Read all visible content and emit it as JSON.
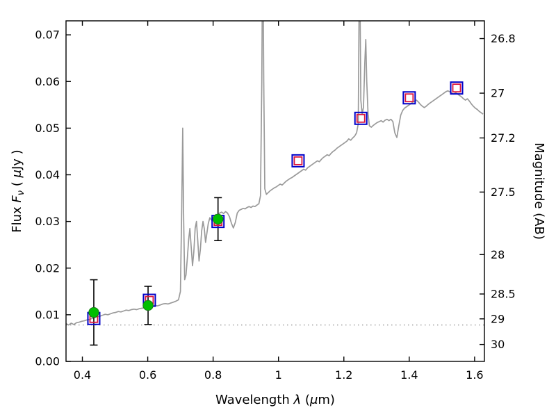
{
  "chart_data": {
    "type": "line",
    "title": "",
    "xlabel_parts": [
      {
        "t": "Wavelength  ",
        "style": "normal"
      },
      {
        "t": "λ",
        "style": "italic"
      },
      {
        "t": " (",
        "style": "normal"
      },
      {
        "t": "μ",
        "style": "italic"
      },
      {
        "t": "m)",
        "style": "normal"
      }
    ],
    "ylabel_left_parts": [
      {
        "t": "Flux  ",
        "style": "normal"
      },
      {
        "t": "F",
        "style": "italic"
      },
      {
        "t": "ν",
        "style": "italic-sub"
      },
      {
        "t": "  ( ",
        "style": "normal"
      },
      {
        "t": "μ",
        "style": "italic"
      },
      {
        "t": "Jy )",
        "style": "normal"
      }
    ],
    "right_axis": {
      "label": "Magnitude (AB)",
      "ticks": [
        {
          "label": "26.8",
          "flux": 0.0692
        },
        {
          "label": "27",
          "flux": 0.0575
        },
        {
          "label": "27.2",
          "flux": 0.0479
        },
        {
          "label": "27.5",
          "flux": 0.0363
        },
        {
          "label": "28",
          "flux": 0.0229
        },
        {
          "label": "28.5",
          "flux": 0.01445
        },
        {
          "label": "29",
          "flux": 0.00912
        },
        {
          "label": "30",
          "flux": 0.00363
        }
      ]
    },
    "xlim": [
      0.35,
      1.63
    ],
    "ylim": [
      0.0,
      0.073
    ],
    "x_ticks": [
      0.4,
      0.6,
      0.8,
      1.0,
      1.2,
      1.4,
      1.6
    ],
    "x_tick_labels": [
      "0.4",
      "0.6",
      "0.8",
      "1",
      "1.2",
      "1.4",
      "1.6"
    ],
    "y_ticks": [
      0.0,
      0.01,
      0.02,
      0.03,
      0.04,
      0.05,
      0.06,
      0.07
    ],
    "y_tick_labels": [
      "0.00",
      "0.01",
      "0.02",
      "0.03",
      "0.04",
      "0.05",
      "0.06",
      "0.07"
    ],
    "dotted_line": {
      "y": 0.0078
    },
    "observed": [
      {
        "x": 0.435,
        "y": 0.0105,
        "err": 0.007
      },
      {
        "x": 0.601,
        "y": 0.012,
        "err": 0.0041
      },
      {
        "x": 0.815,
        "y": 0.0305,
        "err": 0.0046
      }
    ],
    "model": [
      {
        "x": 0.435,
        "y": 0.0092
      },
      {
        "x": 0.605,
        "y": 0.0131
      },
      {
        "x": 0.815,
        "y": 0.03
      },
      {
        "x": 1.06,
        "y": 0.043
      },
      {
        "x": 1.252,
        "y": 0.0521
      },
      {
        "x": 1.4,
        "y": 0.0565
      },
      {
        "x": 1.545,
        "y": 0.0586
      }
    ],
    "spectrum": [
      [
        0.35,
        0.0081
      ],
      [
        0.358,
        0.0078
      ],
      [
        0.366,
        0.0082
      ],
      [
        0.374,
        0.0079
      ],
      [
        0.382,
        0.0083
      ],
      [
        0.39,
        0.0084
      ],
      [
        0.398,
        0.0086
      ],
      [
        0.406,
        0.0087
      ],
      [
        0.414,
        0.0089
      ],
      [
        0.422,
        0.009
      ],
      [
        0.43,
        0.0092
      ],
      [
        0.438,
        0.0094
      ],
      [
        0.446,
        0.0096
      ],
      [
        0.454,
        0.0097
      ],
      [
        0.462,
        0.0099
      ],
      [
        0.47,
        0.0101
      ],
      [
        0.478,
        0.01
      ],
      [
        0.486,
        0.0102
      ],
      [
        0.494,
        0.0104
      ],
      [
        0.502,
        0.0105
      ],
      [
        0.51,
        0.0107
      ],
      [
        0.518,
        0.0106
      ],
      [
        0.526,
        0.0108
      ],
      [
        0.534,
        0.011
      ],
      [
        0.542,
        0.0109
      ],
      [
        0.55,
        0.0111
      ],
      [
        0.558,
        0.0112
      ],
      [
        0.566,
        0.0111
      ],
      [
        0.574,
        0.0113
      ],
      [
        0.582,
        0.0114
      ],
      [
        0.59,
        0.0115
      ],
      [
        0.598,
        0.0116
      ],
      [
        0.606,
        0.0118
      ],
      [
        0.614,
        0.0119
      ],
      [
        0.622,
        0.012
      ],
      [
        0.63,
        0.0119
      ],
      [
        0.638,
        0.0121
      ],
      [
        0.646,
        0.0123
      ],
      [
        0.654,
        0.0124
      ],
      [
        0.662,
        0.0123
      ],
      [
        0.67,
        0.0125
      ],
      [
        0.678,
        0.0127
      ],
      [
        0.686,
        0.0129
      ],
      [
        0.694,
        0.0132
      ],
      [
        0.7,
        0.015
      ],
      [
        0.704,
        0.033
      ],
      [
        0.707,
        0.05
      ],
      [
        0.71,
        0.03
      ],
      [
        0.713,
        0.0175
      ],
      [
        0.717,
        0.0185
      ],
      [
        0.721,
        0.022
      ],
      [
        0.725,
        0.026
      ],
      [
        0.729,
        0.0285
      ],
      [
        0.733,
        0.0245
      ],
      [
        0.737,
        0.0205
      ],
      [
        0.741,
        0.0235
      ],
      [
        0.745,
        0.0285
      ],
      [
        0.749,
        0.03
      ],
      [
        0.753,
        0.026
      ],
      [
        0.757,
        0.0215
      ],
      [
        0.761,
        0.024
      ],
      [
        0.765,
        0.028
      ],
      [
        0.769,
        0.03
      ],
      [
        0.773,
        0.0285
      ],
      [
        0.777,
        0.0255
      ],
      [
        0.781,
        0.0275
      ],
      [
        0.785,
        0.0295
      ],
      [
        0.79,
        0.0308
      ],
      [
        0.796,
        0.0302
      ],
      [
        0.802,
        0.031
      ],
      [
        0.808,
        0.0315
      ],
      [
        0.814,
        0.0312
      ],
      [
        0.82,
        0.0318
      ],
      [
        0.826,
        0.032
      ],
      [
        0.832,
        0.0317
      ],
      [
        0.838,
        0.0321
      ],
      [
        0.844,
        0.0318
      ],
      [
        0.85,
        0.031
      ],
      [
        0.856,
        0.0296
      ],
      [
        0.862,
        0.0286
      ],
      [
        0.868,
        0.0298
      ],
      [
        0.874,
        0.0318
      ],
      [
        0.88,
        0.0324
      ],
      [
        0.886,
        0.0326
      ],
      [
        0.892,
        0.0328
      ],
      [
        0.898,
        0.0327
      ],
      [
        0.904,
        0.033
      ],
      [
        0.91,
        0.0332
      ],
      [
        0.916,
        0.033
      ],
      [
        0.922,
        0.0333
      ],
      [
        0.928,
        0.0332
      ],
      [
        0.934,
        0.0335
      ],
      [
        0.94,
        0.0338
      ],
      [
        0.945,
        0.0355
      ],
      [
        0.949,
        0.06
      ],
      [
        0.952,
        0.095
      ],
      [
        0.955,
        0.06
      ],
      [
        0.958,
        0.037
      ],
      [
        0.963,
        0.0358
      ],
      [
        0.969,
        0.0362
      ],
      [
        0.975,
        0.0366
      ],
      [
        0.981,
        0.0369
      ],
      [
        0.987,
        0.0372
      ],
      [
        0.993,
        0.0374
      ],
      [
        0.999,
        0.0377
      ],
      [
        1.005,
        0.038
      ],
      [
        1.011,
        0.0378
      ],
      [
        1.017,
        0.0382
      ],
      [
        1.023,
        0.0386
      ],
      [
        1.029,
        0.0389
      ],
      [
        1.035,
        0.0392
      ],
      [
        1.041,
        0.0394
      ],
      [
        1.047,
        0.0397
      ],
      [
        1.053,
        0.04
      ],
      [
        1.059,
        0.0403
      ],
      [
        1.065,
        0.0406
      ],
      [
        1.071,
        0.0409
      ],
      [
        1.077,
        0.0412
      ],
      [
        1.083,
        0.041
      ],
      [
        1.089,
        0.0415
      ],
      [
        1.095,
        0.0418
      ],
      [
        1.101,
        0.0421
      ],
      [
        1.107,
        0.0424
      ],
      [
        1.113,
        0.0427
      ],
      [
        1.119,
        0.043
      ],
      [
        1.125,
        0.0428
      ],
      [
        1.131,
        0.0433
      ],
      [
        1.137,
        0.0437
      ],
      [
        1.143,
        0.044
      ],
      [
        1.149,
        0.0443
      ],
      [
        1.155,
        0.0441
      ],
      [
        1.161,
        0.0446
      ],
      [
        1.167,
        0.045
      ],
      [
        1.173,
        0.0453
      ],
      [
        1.179,
        0.0457
      ],
      [
        1.185,
        0.046
      ],
      [
        1.191,
        0.0463
      ],
      [
        1.197,
        0.0466
      ],
      [
        1.203,
        0.0469
      ],
      [
        1.209,
        0.0472
      ],
      [
        1.215,
        0.0477
      ],
      [
        1.221,
        0.0474
      ],
      [
        1.227,
        0.0479
      ],
      [
        1.233,
        0.0483
      ],
      [
        1.239,
        0.049
      ],
      [
        1.244,
        0.051
      ],
      [
        1.248,
        0.09
      ],
      [
        1.252,
        0.056
      ],
      [
        1.256,
        0.053
      ],
      [
        1.26,
        0.0545
      ],
      [
        1.264,
        0.064
      ],
      [
        1.267,
        0.069
      ],
      [
        1.27,
        0.06
      ],
      [
        1.274,
        0.053
      ],
      [
        1.278,
        0.0505
      ],
      [
        1.284,
        0.0502
      ],
      [
        1.29,
        0.0506
      ],
      [
        1.296,
        0.0509
      ],
      [
        1.302,
        0.0512
      ],
      [
        1.308,
        0.0514
      ],
      [
        1.314,
        0.0516
      ],
      [
        1.32,
        0.0513
      ],
      [
        1.326,
        0.0517
      ],
      [
        1.332,
        0.0519
      ],
      [
        1.338,
        0.0516
      ],
      [
        1.344,
        0.0519
      ],
      [
        1.35,
        0.0514
      ],
      [
        1.356,
        0.049
      ],
      [
        1.362,
        0.048
      ],
      [
        1.368,
        0.0505
      ],
      [
        1.374,
        0.0528
      ],
      [
        1.38,
        0.0538
      ],
      [
        1.386,
        0.0543
      ],
      [
        1.392,
        0.0546
      ],
      [
        1.398,
        0.0549
      ],
      [
        1.404,
        0.0552
      ],
      [
        1.41,
        0.0555
      ],
      [
        1.416,
        0.0558
      ],
      [
        1.422,
        0.056
      ],
      [
        1.428,
        0.0556
      ],
      [
        1.434,
        0.0551
      ],
      [
        1.44,
        0.0547
      ],
      [
        1.446,
        0.0544
      ],
      [
        1.452,
        0.0547
      ],
      [
        1.458,
        0.0551
      ],
      [
        1.464,
        0.0554
      ],
      [
        1.47,
        0.0557
      ],
      [
        1.476,
        0.056
      ],
      [
        1.482,
        0.0563
      ],
      [
        1.488,
        0.0566
      ],
      [
        1.494,
        0.0569
      ],
      [
        1.5,
        0.0572
      ],
      [
        1.506,
        0.0575
      ],
      [
        1.512,
        0.0578
      ],
      [
        1.518,
        0.058
      ],
      [
        1.524,
        0.0578
      ],
      [
        1.53,
        0.0575
      ],
      [
        1.536,
        0.0573
      ],
      [
        1.542,
        0.0576
      ],
      [
        1.548,
        0.0573
      ],
      [
        1.554,
        0.057
      ],
      [
        1.56,
        0.0567
      ],
      [
        1.566,
        0.0563
      ],
      [
        1.572,
        0.056
      ],
      [
        1.578,
        0.0563
      ],
      [
        1.584,
        0.0558
      ],
      [
        1.59,
        0.0552
      ],
      [
        1.596,
        0.0547
      ],
      [
        1.602,
        0.0543
      ],
      [
        1.608,
        0.054
      ],
      [
        1.614,
        0.0536
      ],
      [
        1.62,
        0.0533
      ],
      [
        1.626,
        0.053
      ]
    ],
    "colors": {
      "spectrum": "#9a9a9a",
      "dotted": "#8c8c8c",
      "observed_fill": "#00bf00",
      "observed_edge": "#1a7a1a",
      "errorbar": "#000000",
      "model_outer": "#0000c8",
      "model_inner": "#dc143c",
      "frame": "#000000"
    }
  }
}
